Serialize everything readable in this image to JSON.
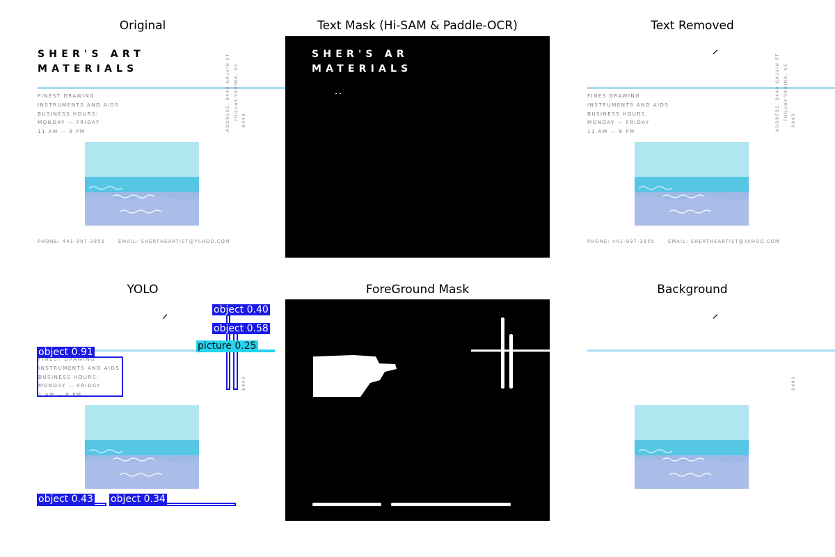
{
  "panels": {
    "original": {
      "title": "Original"
    },
    "text_mask": {
      "title": "Text Mask (Hi-SAM & Paddle-OCR)"
    },
    "text_removed": {
      "title": "Text Removed"
    },
    "yolo": {
      "title": "YOLO"
    },
    "foreground_mask": {
      "title": "ForeGround Mask"
    },
    "background": {
      "title": "Background"
    }
  },
  "poster": {
    "brand_line1": "SHER'S ART",
    "brand_line2": "MATERIALS",
    "mask_brand_line1": "SHER'S AR",
    "mask_brand_line2": "MATERIALS",
    "info_lines": [
      "FINEST DRAWING",
      "INSTRUMENTS AND AIDS",
      "BUSINESS HOURS:",
      "MONDAY — FRIDAY",
      "11 AM — 8 PM"
    ],
    "removed_info_lines": [
      "FINES DRAWING",
      "INSTRUMENTS AND AIDS",
      "BUSINESS HOURS:",
      "MONDAY — FRIDAY",
      "11 AM — 8 PM"
    ],
    "yolo_info_lines": [
      "FINEST DRAWING",
      "INSTRUMENTS AND AIDS",
      "BUSINESS HOURS:",
      "MONDAY — FRIDAY",
      "1 AM — 8 PM"
    ],
    "address_col1": "ADDRESS: 8440 GALVIN ST",
    "address_col2": "FUQUAY-VARINA, NC",
    "address_col3": "8443",
    "phone": "PHONE: 441-997-3855",
    "email": "EMAIL: SHERTHEARTIST@YAHOO.COM"
  },
  "yolo_detections": [
    {
      "label": "object 0.40"
    },
    {
      "label": "object 0.58"
    },
    {
      "label": "picture 0.25"
    },
    {
      "label": "object 0.91"
    },
    {
      "label": "object 0.43"
    },
    {
      "label": "object 0.34"
    }
  ],
  "colors": {
    "accent_line": "#a8dbef",
    "yolo_box": "#1a1ae6",
    "yolo_picture": "#22d3ee"
  }
}
